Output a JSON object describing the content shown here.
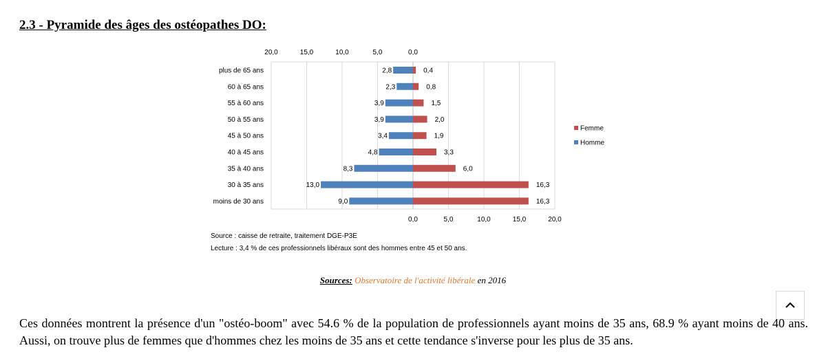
{
  "heading": "2.3 - Pyramide des âges des ostéopathes DO:",
  "chart_data": {
    "type": "bar",
    "orientation": "horizontal-pyramid",
    "categories": [
      "plus de 65 ans",
      "60 à 65 ans",
      "55 à 60 ans",
      "50 à 55 ans",
      "45 à 50 ans",
      "40 à 45 ans",
      "35 à 40 ans",
      "30 à 35 ans",
      "moins de 30 ans"
    ],
    "series": [
      {
        "name": "Homme",
        "side": "left",
        "color": "#4f81bd",
        "values": [
          2.8,
          2.3,
          3.9,
          3.9,
          3.4,
          4.8,
          8.3,
          13.0,
          9.0
        ],
        "labels": [
          "2,8",
          "2,3",
          "3,9",
          "3,9",
          "3,4",
          "4,8",
          "8,3",
          "13,0",
          "9,0"
        ]
      },
      {
        "name": "Femme",
        "side": "right",
        "color": "#c0504d",
        "values": [
          0.4,
          0.8,
          1.5,
          2.0,
          1.9,
          3.3,
          6.0,
          16.3,
          16.3
        ],
        "labels": [
          "0,4",
          "0,8",
          "1,5",
          "2,0",
          "1,9",
          "3,3",
          "6,0",
          "16,3",
          "16,3"
        ]
      }
    ],
    "left_ticks": [
      "20,0",
      "15,0",
      "10,0",
      "5,0",
      "0,0"
    ],
    "right_ticks": [
      "0,0",
      "5,0",
      "10,0",
      "15,0",
      "20,0"
    ],
    "axis_range": [
      0,
      20
    ],
    "grid": true,
    "legend": [
      "Femme",
      "Homme"
    ],
    "legend_position": "right"
  },
  "source_note": "Source : caisse de retraite, traitement DGE-P3E",
  "reading_note": "Lecture : 3,4 % de ces professionnels libéraux sont des hommes entre 45 et 50 ans.",
  "sources": {
    "label": "Sources:",
    "link": "Observatoire de l'activité libérale",
    "suffix": " en 2016"
  },
  "back_to_top_icon": "chevron-up-icon",
  "paragraph": "Ces données montrent la présence d'un \"ostéo-boom\" avec 54.6 % de la population de professionnels ayant moins de 35 ans,  68.9 % ayant moins de 40 ans. Aussi, on trouve plus de femmes que d'hommes chez les moins de 35 ans et cette tendance s'inverse pour les plus de 35 ans."
}
